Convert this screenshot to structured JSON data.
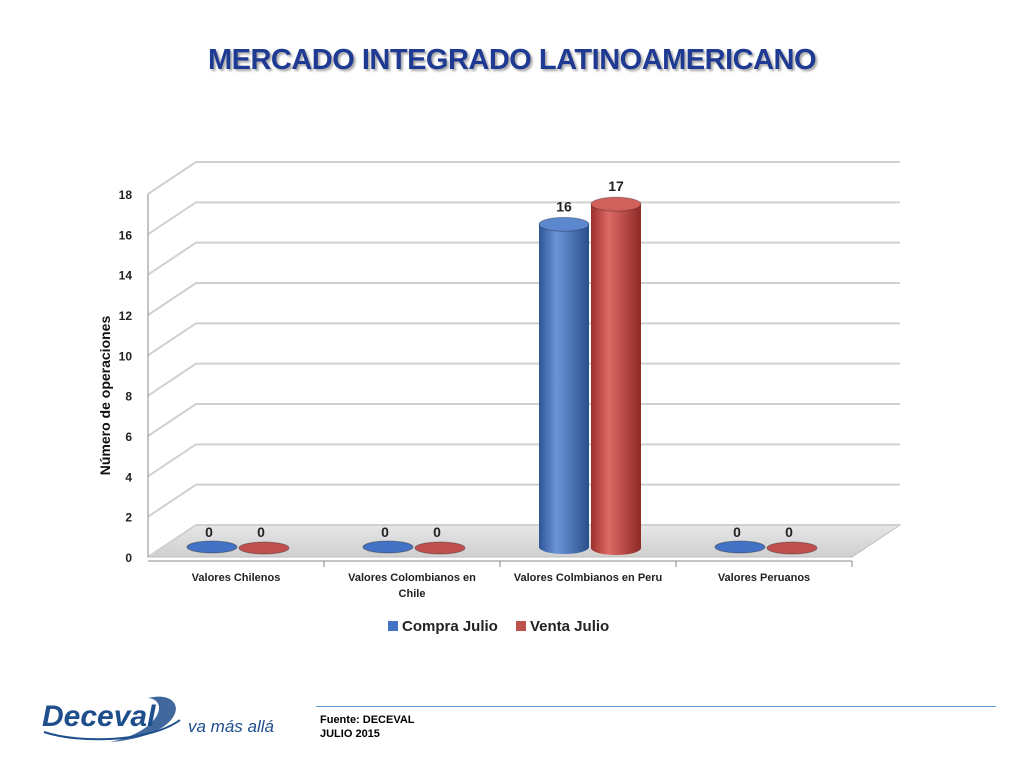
{
  "page": {
    "title": "MERCADO INTEGRADO LATINOAMERICANO",
    "source_line1": "Fuente: DECEVAL",
    "source_line2": "JULIO 2015",
    "logo_text": "Deceval",
    "logo_tagline": "va más allá"
  },
  "colors": {
    "title": "#1f3a93",
    "compra": "#4472c4",
    "venta": "#c0504d",
    "logo": "#1f4e8c"
  },
  "chart_data": {
    "type": "bar",
    "style": "3d-cylinder",
    "title": "",
    "ylabel": "Número de operaciones",
    "xlabel": "",
    "ylim": [
      0,
      18
    ],
    "yticks": [
      0,
      2,
      4,
      6,
      8,
      10,
      12,
      14,
      16,
      18
    ],
    "grid": true,
    "legend_position": "bottom",
    "categories": [
      [
        "Valores Chilenos"
      ],
      [
        "Valores Colombianos en",
        "Chile"
      ],
      [
        "Valores Colmbianos en Peru"
      ],
      [
        "Valores Peruanos"
      ]
    ],
    "series": [
      {
        "name": "Compra Julio",
        "color": "#4472c4",
        "values": [
          0,
          0,
          16,
          0
        ]
      },
      {
        "name": "Venta Julio",
        "color": "#c0504d",
        "values": [
          0,
          0,
          17,
          0
        ]
      }
    ]
  }
}
